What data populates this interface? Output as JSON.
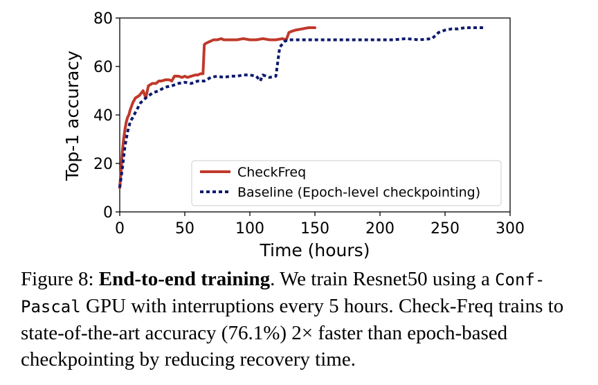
{
  "chart_data": {
    "type": "line",
    "xlabel": "Time (hours)",
    "ylabel": "Top-1 accuracy",
    "xlim": [
      0,
      300
    ],
    "ylim": [
      0,
      80
    ],
    "xticks": [
      0,
      50,
      100,
      150,
      200,
      250,
      300
    ],
    "yticks": [
      0,
      20,
      40,
      60,
      80
    ],
    "grid": false,
    "legend_position": "lower-right",
    "series": [
      {
        "name": "CheckFreq",
        "color": "#c0392b",
        "style": "solid",
        "x": [
          0,
          1,
          2,
          3,
          4,
          5,
          6,
          7,
          8,
          10,
          12,
          15,
          18,
          20,
          22,
          25,
          28,
          30,
          32,
          35,
          38,
          40,
          42,
          45,
          48,
          50,
          52,
          55,
          58,
          60,
          62,
          64,
          65,
          66,
          68,
          70,
          72,
          75,
          78,
          80,
          85,
          90,
          95,
          100,
          105,
          110,
          115,
          120,
          125,
          128,
          130,
          132,
          135,
          140,
          145,
          150
        ],
        "y": [
          10,
          17,
          25,
          30,
          34,
          37,
          39,
          40,
          42,
          45,
          47,
          48,
          50,
          47,
          52,
          53,
          53,
          54,
          54,
          54.5,
          54.5,
          54,
          56,
          56,
          55.5,
          56,
          55.5,
          56,
          56.5,
          56.5,
          57,
          57,
          69,
          69.5,
          70,
          70.5,
          71,
          71,
          71.5,
          71,
          71,
          71,
          71.5,
          71,
          71,
          71.5,
          71,
          71,
          71.5,
          71,
          74,
          74.5,
          75,
          75.5,
          76,
          76
        ]
      },
      {
        "name": "Baseline (Epoch-level checkpointing)",
        "color": "#0d1a6e",
        "style": "dotted",
        "x": [
          0,
          2,
          4,
          6,
          8,
          10,
          13,
          16,
          20,
          25,
          30,
          35,
          40,
          45,
          50,
          55,
          60,
          65,
          70,
          75,
          80,
          85,
          90,
          95,
          100,
          105,
          108,
          110,
          115,
          120,
          123,
          127,
          130,
          140,
          150,
          160,
          170,
          180,
          190,
          200,
          210,
          220,
          230,
          240,
          245,
          250,
          255,
          260,
          265,
          270,
          280
        ],
        "y": [
          10,
          18,
          27,
          33,
          37,
          39,
          42,
          45,
          47,
          49,
          50,
          51.5,
          52,
          53,
          53.5,
          53,
          54,
          54,
          55.5,
          56,
          55.5,
          56,
          56,
          56.5,
          56.5,
          56,
          54,
          56.5,
          55.5,
          56,
          68,
          70.5,
          71,
          71,
          71,
          71,
          71,
          71,
          71,
          71,
          71,
          71.5,
          71,
          71.5,
          74,
          75,
          75.5,
          75.5,
          76,
          76,
          76
        ]
      }
    ]
  },
  "caption": {
    "figure_label": "Figure 8: ",
    "bold_title": "End-to-end training",
    "part1": ". We train Resnet50 using a ",
    "mono_term": "Conf-Pascal",
    "part2": " GPU with interruptions every 5 hours. Check-Freq trains to state-of-the-art accuracy (76.1%) 2× faster than epoch-based checkpointing by reducing recovery time."
  }
}
